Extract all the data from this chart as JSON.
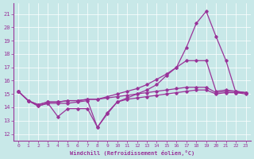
{
  "xlabel": "Windchill (Refroidissement éolien,°C)",
  "x_ticks": [
    0,
    1,
    2,
    3,
    4,
    5,
    6,
    7,
    8,
    9,
    10,
    11,
    12,
    13,
    14,
    15,
    16,
    17,
    18,
    19,
    20,
    21,
    22,
    23
  ],
  "ylim": [
    11.5,
    21.8
  ],
  "yticks": [
    12,
    13,
    14,
    15,
    16,
    17,
    18,
    19,
    20,
    21
  ],
  "xlim": [
    -0.5,
    23.5
  ],
  "bg_color": "#c8e8e8",
  "line_color": "#993399",
  "line1_y": [
    15.2,
    14.5,
    14.1,
    14.3,
    13.3,
    13.9,
    13.9,
    13.9,
    12.5,
    13.6,
    14.4,
    14.6,
    14.7,
    14.8,
    14.9,
    15.0,
    15.1,
    15.2,
    15.3,
    15.3,
    15.0,
    15.1,
    15.1,
    15.1
  ],
  "line2_y": [
    15.2,
    14.5,
    14.2,
    14.4,
    14.4,
    14.5,
    14.5,
    14.6,
    14.6,
    14.7,
    14.8,
    14.9,
    15.0,
    15.1,
    15.2,
    15.3,
    15.4,
    15.5,
    15.5,
    15.5,
    15.1,
    15.2,
    15.2,
    15.1
  ],
  "line3_y": [
    15.2,
    14.5,
    14.2,
    14.4,
    14.4,
    14.5,
    14.5,
    14.6,
    14.6,
    14.8,
    15.0,
    15.2,
    15.4,
    15.7,
    16.1,
    16.5,
    17.0,
    17.5,
    17.5,
    17.5,
    15.2,
    15.3,
    15.2,
    15.1
  ],
  "line4_y": [
    15.2,
    14.5,
    14.1,
    14.3,
    14.3,
    14.3,
    14.4,
    14.5,
    12.5,
    13.5,
    14.4,
    14.7,
    15.0,
    15.3,
    15.7,
    16.4,
    17.0,
    18.5,
    20.3,
    21.2,
    19.3,
    17.5,
    15.1,
    15.0
  ]
}
